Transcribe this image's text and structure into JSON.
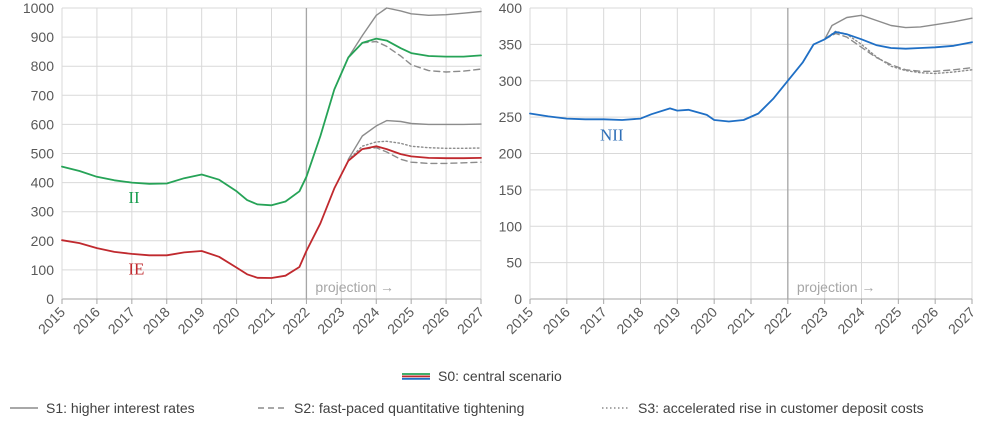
{
  "chart_data": [
    {
      "type": "line",
      "x_ticks": [
        "2015",
        "2016",
        "2017",
        "2018",
        "2019",
        "2020",
        "2021",
        "2022",
        "2023",
        "2024",
        "2025",
        "2026",
        "2027"
      ],
      "ylim": [
        0,
        1000
      ],
      "y_ticks": [
        "0",
        "100",
        "200",
        "300",
        "400",
        "500",
        "600",
        "700",
        "800",
        "900",
        "1000"
      ],
      "grid": true,
      "projection_start": 2022.0,
      "projection_label": "projection →",
      "annotations": [
        {
          "text": "II",
          "x": 2016.9,
          "y": 330,
          "color": "#1a9e50"
        },
        {
          "text": "IE",
          "x": 2016.9,
          "y": 85,
          "color": "#c0292e"
        }
      ],
      "series": [
        {
          "group": "II",
          "scenario": "S0",
          "color": "#26a357",
          "dash": "solid",
          "width": 1.8,
          "points": [
            [
              2015,
              455
            ],
            [
              2015.5,
              440
            ],
            [
              2016,
              420
            ],
            [
              2016.5,
              408
            ],
            [
              2017,
              400
            ],
            [
              2017.5,
              396
            ],
            [
              2018,
              397
            ],
            [
              2018.5,
              415
            ],
            [
              2019,
              428
            ],
            [
              2019.5,
              410
            ],
            [
              2020,
              370
            ],
            [
              2020.3,
              340
            ],
            [
              2020.6,
              325
            ],
            [
              2021,
              322
            ],
            [
              2021.4,
              335
            ],
            [
              2021.8,
              370
            ],
            [
              2022,
              420
            ],
            [
              2022.4,
              560
            ],
            [
              2022.8,
              720
            ],
            [
              2023.2,
              830
            ],
            [
              2023.6,
              880
            ],
            [
              2024,
              895
            ],
            [
              2024.3,
              888
            ],
            [
              2024.7,
              862
            ],
            [
              2025,
              845
            ],
            [
              2025.5,
              835
            ],
            [
              2026,
              833
            ],
            [
              2026.5,
              833
            ],
            [
              2027,
              837
            ]
          ]
        },
        {
          "group": "II",
          "scenario": "S1",
          "color": "#8c8c8c",
          "dash": "solid",
          "width": 1.4,
          "points": [
            [
              2023.2,
              830
            ],
            [
              2023.6,
              905
            ],
            [
              2024,
              975
            ],
            [
              2024.3,
              1000
            ],
            [
              2024.7,
              990
            ],
            [
              2025,
              980
            ],
            [
              2025.5,
              975
            ],
            [
              2026,
              977
            ],
            [
              2026.5,
              982
            ],
            [
              2027,
              988
            ]
          ]
        },
        {
          "group": "II",
          "scenario": "S2",
          "color": "#8c8c8c",
          "dash": "dashed",
          "width": 1.4,
          "points": [
            [
              2023.2,
              830
            ],
            [
              2023.6,
              880
            ],
            [
              2024,
              885
            ],
            [
              2024.3,
              868
            ],
            [
              2024.7,
              835
            ],
            [
              2025,
              805
            ],
            [
              2025.5,
              785
            ],
            [
              2026,
              780
            ],
            [
              2026.5,
              783
            ],
            [
              2027,
              790
            ]
          ]
        },
        {
          "group": "IE",
          "scenario": "S0",
          "color": "#c0292e",
          "dash": "solid",
          "width": 1.8,
          "points": [
            [
              2015,
              202
            ],
            [
              2015.5,
              192
            ],
            [
              2016,
              175
            ],
            [
              2016.5,
              162
            ],
            [
              2017,
              155
            ],
            [
              2017.5,
              150
            ],
            [
              2018,
              150
            ],
            [
              2018.5,
              160
            ],
            [
              2019,
              165
            ],
            [
              2019.5,
              145
            ],
            [
              2020,
              108
            ],
            [
              2020.3,
              85
            ],
            [
              2020.6,
              73
            ],
            [
              2021,
              72
            ],
            [
              2021.4,
              80
            ],
            [
              2021.8,
              110
            ],
            [
              2022,
              165
            ],
            [
              2022.4,
              260
            ],
            [
              2022.8,
              380
            ],
            [
              2023.2,
              475
            ],
            [
              2023.6,
              515
            ],
            [
              2024,
              525
            ],
            [
              2024.3,
              515
            ],
            [
              2024.7,
              498
            ],
            [
              2025,
              490
            ],
            [
              2025.5,
              485
            ],
            [
              2026,
              484
            ],
            [
              2026.5,
              484
            ],
            [
              2027,
              485
            ]
          ]
        },
        {
          "group": "IE",
          "scenario": "S1",
          "color": "#8c8c8c",
          "dash": "solid",
          "width": 1.4,
          "points": [
            [
              2023.2,
              480
            ],
            [
              2023.6,
              560
            ],
            [
              2024,
              595
            ],
            [
              2024.3,
              613
            ],
            [
              2024.7,
              610
            ],
            [
              2025,
              603
            ],
            [
              2025.5,
              600
            ],
            [
              2026,
              600
            ],
            [
              2026.5,
              600
            ],
            [
              2027,
              601
            ]
          ]
        },
        {
          "group": "IE",
          "scenario": "S2",
          "color": "#8c8c8c",
          "dash": "dashed",
          "width": 1.4,
          "points": [
            [
              2023.2,
              475
            ],
            [
              2023.6,
              515
            ],
            [
              2024,
              520
            ],
            [
              2024.3,
              505
            ],
            [
              2024.7,
              480
            ],
            [
              2025,
              470
            ],
            [
              2025.5,
              466
            ],
            [
              2026,
              466
            ],
            [
              2026.5,
              468
            ],
            [
              2027,
              470
            ]
          ]
        },
        {
          "group": "IE",
          "scenario": "S3",
          "color": "#8c8c8c",
          "dash": "dotted",
          "width": 1.4,
          "points": [
            [
              2023.2,
              478
            ],
            [
              2023.6,
              525
            ],
            [
              2024,
              540
            ],
            [
              2024.3,
              542
            ],
            [
              2024.7,
              535
            ],
            [
              2025,
              525
            ],
            [
              2025.5,
              520
            ],
            [
              2026,
              518
            ],
            [
              2026.5,
              518
            ],
            [
              2027,
              519
            ]
          ]
        }
      ]
    },
    {
      "type": "line",
      "x_ticks": [
        "2015",
        "2016",
        "2017",
        "2018",
        "2019",
        "2020",
        "2021",
        "2022",
        "2023",
        "2024",
        "2025",
        "2026",
        "2027"
      ],
      "ylim": [
        0,
        400
      ],
      "y_ticks": [
        "0",
        "50",
        "100",
        "150",
        "200",
        "250",
        "300",
        "350",
        "400"
      ],
      "grid": true,
      "projection_start": 2022.0,
      "projection_label": "projection →",
      "annotations": [
        {
          "text": "NII",
          "x": 2016.9,
          "y": 218,
          "color": "#2f6fb7"
        }
      ],
      "series": [
        {
          "group": "NII",
          "scenario": "S0",
          "color": "#1f6fc5",
          "dash": "solid",
          "width": 1.8,
          "points": [
            [
              2015,
              255
            ],
            [
              2015.5,
              251
            ],
            [
              2016,
              248
            ],
            [
              2016.5,
              247
            ],
            [
              2017,
              247
            ],
            [
              2017.5,
              246
            ],
            [
              2018,
              248
            ],
            [
              2018.3,
              254
            ],
            [
              2018.8,
              262
            ],
            [
              2019,
              259
            ],
            [
              2019.3,
              260
            ],
            [
              2019.8,
              253
            ],
            [
              2020,
              246
            ],
            [
              2020.4,
              244
            ],
            [
              2020.8,
              246
            ],
            [
              2021.2,
              255
            ],
            [
              2021.6,
              275
            ],
            [
              2022,
              300
            ],
            [
              2022.4,
              325
            ],
            [
              2022.7,
              350
            ],
            [
              2023,
              357
            ],
            [
              2023.3,
              367
            ],
            [
              2023.6,
              364
            ],
            [
              2024,
              357
            ],
            [
              2024.4,
              349
            ],
            [
              2024.8,
              345
            ],
            [
              2025.2,
              344
            ],
            [
              2025.6,
              345
            ],
            [
              2026,
              346
            ],
            [
              2026.5,
              348
            ],
            [
              2027,
              353
            ]
          ]
        },
        {
          "group": "NII",
          "scenario": "S1",
          "color": "#8c8c8c",
          "dash": "solid",
          "width": 1.4,
          "points": [
            [
              2023,
              357
            ],
            [
              2023.2,
              376
            ],
            [
              2023.6,
              387
            ],
            [
              2024,
              390
            ],
            [
              2024.4,
              383
            ],
            [
              2024.8,
              376
            ],
            [
              2025.2,
              373
            ],
            [
              2025.6,
              374
            ],
            [
              2026,
              377
            ],
            [
              2026.5,
              381
            ],
            [
              2027,
              386
            ]
          ]
        },
        {
          "group": "NII",
          "scenario": "S2",
          "color": "#8c8c8c",
          "dash": "dashed",
          "width": 1.4,
          "points": [
            [
              2023,
              357
            ],
            [
              2023.3,
              365
            ],
            [
              2023.6,
              360
            ],
            [
              2024,
              346
            ],
            [
              2024.4,
              332
            ],
            [
              2024.8,
              322
            ],
            [
              2025.2,
              315
            ],
            [
              2025.6,
              313
            ],
            [
              2026,
              313
            ],
            [
              2026.5,
              315
            ],
            [
              2027,
              318
            ]
          ]
        },
        {
          "group": "NII",
          "scenario": "S3",
          "color": "#8c8c8c",
          "dash": "dotted",
          "width": 1.4,
          "points": [
            [
              2023,
              357
            ],
            [
              2023.3,
              368
            ],
            [
              2023.6,
              364
            ],
            [
              2024,
              350
            ],
            [
              2024.4,
              333
            ],
            [
              2024.8,
              320
            ],
            [
              2025.2,
              314
            ],
            [
              2025.6,
              311
            ],
            [
              2026,
              310
            ],
            [
              2026.5,
              312
            ],
            [
              2027,
              315
            ]
          ]
        }
      ]
    }
  ],
  "legend": {
    "row1": [
      {
        "label": "S0: central scenario",
        "colors": [
          "#26a357",
          "#c0292e",
          "#1f6fc5"
        ],
        "dash": "solid"
      }
    ],
    "row2": [
      {
        "label": "S1: higher interest rates",
        "color": "#8c8c8c",
        "dash": "solid"
      },
      {
        "label": "S2: fast-paced quantitative tightening",
        "color": "#8c8c8c",
        "dash": "dashed"
      },
      {
        "label": "S3: accelerated rise in customer deposit costs",
        "color": "#8c8c8c",
        "dash": "dotted"
      }
    ]
  }
}
